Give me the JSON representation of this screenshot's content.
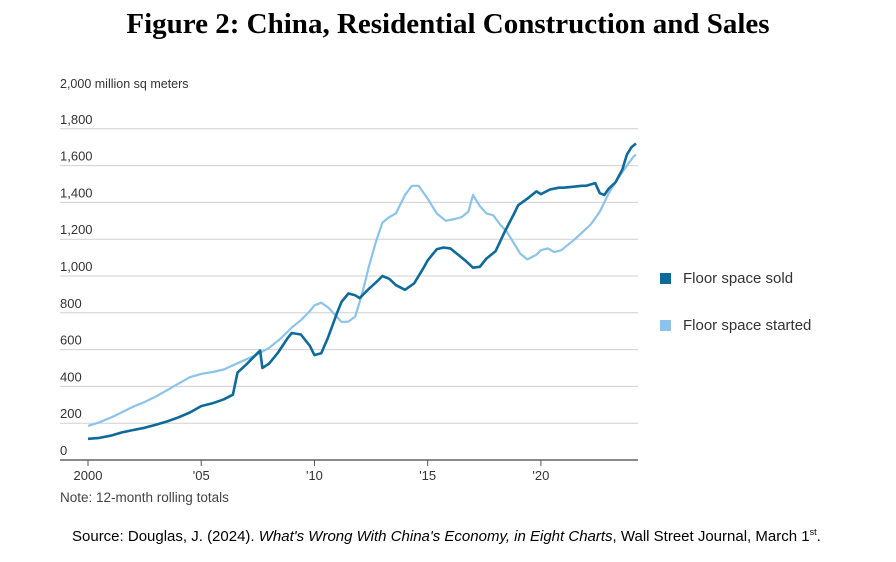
{
  "title": "Figure 2: China, Residential Construction and Sales",
  "unit_label": "2,000 million sq meters",
  "note": "Note: 12-month rolling totals",
  "source": {
    "prefix": "Source: Douglas, J. (2024). ",
    "article": "What's Wrong With China's Economy, in Eight Charts",
    "suffix": ", Wall Street Journal, March 1",
    "sup": "st",
    "end": "."
  },
  "colors": {
    "sold": "#0e6a9a",
    "started": "#8cc3e8"
  },
  "chart_data": {
    "type": "line",
    "ylim": [
      0,
      2000
    ],
    "xlim": [
      2000,
      2024.2
    ],
    "yticks": [
      {
        "value": 0,
        "label": "0"
      },
      {
        "value": 200,
        "label": "200"
      },
      {
        "value": 400,
        "label": "400"
      },
      {
        "value": 600,
        "label": "600"
      },
      {
        "value": 800,
        "label": "800"
      },
      {
        "value": 1000,
        "label": "1,000"
      },
      {
        "value": 1200,
        "label": "1,200"
      },
      {
        "value": 1400,
        "label": "1,400"
      },
      {
        "value": 1600,
        "label": "1,600"
      },
      {
        "value": 1800,
        "label": "1,800"
      }
    ],
    "xticks": [
      {
        "value": 2000,
        "label": "2000"
      },
      {
        "value": 2005,
        "label": "'05"
      },
      {
        "value": 2010,
        "label": "'10"
      },
      {
        "value": 2015,
        "label": "'15"
      },
      {
        "value": 2020,
        "label": "'20"
      }
    ],
    "grid": true,
    "legend_position": "right",
    "series": [
      {
        "name": "Floor space sold",
        "points": [
          [
            2000,
            115
          ],
          [
            2000.5,
            120
          ],
          [
            2001,
            132
          ],
          [
            2001.5,
            150
          ],
          [
            2002,
            163
          ],
          [
            2002.5,
            175
          ],
          [
            2003,
            192
          ],
          [
            2003.5,
            210
          ],
          [
            2004,
            232
          ],
          [
            2004.5,
            258
          ],
          [
            2005,
            293
          ],
          [
            2005.5,
            308
          ],
          [
            2006,
            330
          ],
          [
            2006.4,
            355
          ],
          [
            2006.6,
            475
          ],
          [
            2007,
            520
          ],
          [
            2007.4,
            570
          ],
          [
            2007.6,
            595
          ],
          [
            2007.7,
            500
          ],
          [
            2008,
            525
          ],
          [
            2008.4,
            585
          ],
          [
            2008.8,
            660
          ],
          [
            2009,
            690
          ],
          [
            2009.4,
            682
          ],
          [
            2009.8,
            620
          ],
          [
            2010,
            570
          ],
          [
            2010.3,
            580
          ],
          [
            2010.6,
            665
          ],
          [
            2011,
            800
          ],
          [
            2011.2,
            860
          ],
          [
            2011.5,
            905
          ],
          [
            2011.8,
            895
          ],
          [
            2012,
            880
          ],
          [
            2012.4,
            930
          ],
          [
            2012.8,
            975
          ],
          [
            2013,
            1000
          ],
          [
            2013.3,
            985
          ],
          [
            2013.6,
            950
          ],
          [
            2014,
            925
          ],
          [
            2014.4,
            960
          ],
          [
            2014.8,
            1040
          ],
          [
            2015,
            1085
          ],
          [
            2015.4,
            1145
          ],
          [
            2015.7,
            1155
          ],
          [
            2016,
            1150
          ],
          [
            2016.3,
            1120
          ],
          [
            2016.7,
            1080
          ],
          [
            2017,
            1045
          ],
          [
            2017.3,
            1050
          ],
          [
            2017.6,
            1095
          ],
          [
            2018,
            1135
          ],
          [
            2018.4,
            1240
          ],
          [
            2018.8,
            1335
          ],
          [
            2019,
            1385
          ],
          [
            2019.4,
            1420
          ],
          [
            2019.8,
            1460
          ],
          [
            2020,
            1445
          ],
          [
            2020.4,
            1470
          ],
          [
            2020.8,
            1480
          ],
          [
            2021,
            1480
          ],
          [
            2021.4,
            1485
          ],
          [
            2021.8,
            1490
          ],
          [
            2022,
            1490
          ],
          [
            2022.4,
            1505
          ],
          [
            2022.6,
            1450
          ],
          [
            2022.8,
            1440
          ],
          [
            2023,
            1475
          ],
          [
            2023.3,
            1510
          ],
          [
            2023.6,
            1580
          ],
          [
            2023.8,
            1660
          ],
          [
            2024,
            1700
          ],
          [
            2024.2,
            1720
          ]
        ]
      },
      {
        "name": "Floor space started",
        "points": [
          [
            2000,
            185
          ],
          [
            2000.5,
            205
          ],
          [
            2001,
            230
          ],
          [
            2001.5,
            260
          ],
          [
            2002,
            290
          ],
          [
            2002.5,
            315
          ],
          [
            2003,
            345
          ],
          [
            2003.5,
            380
          ],
          [
            2004,
            415
          ],
          [
            2004.5,
            450
          ],
          [
            2005,
            468
          ],
          [
            2005.5,
            478
          ],
          [
            2006,
            492
          ],
          [
            2006.5,
            520
          ],
          [
            2007,
            548
          ],
          [
            2007.5,
            575
          ],
          [
            2008,
            610
          ],
          [
            2008.5,
            660
          ],
          [
            2009,
            720
          ],
          [
            2009.4,
            760
          ],
          [
            2009.8,
            810
          ],
          [
            2010,
            840
          ],
          [
            2010.3,
            855
          ],
          [
            2010.6,
            830
          ],
          [
            2010.9,
            790
          ],
          [
            2011.2,
            750
          ],
          [
            2011.5,
            752
          ],
          [
            2011.8,
            780
          ],
          [
            2012,
            860
          ],
          [
            2012.2,
            950
          ],
          [
            2012.4,
            1050
          ],
          [
            2012.7,
            1180
          ],
          [
            2013,
            1290
          ],
          [
            2013.3,
            1320
          ],
          [
            2013.6,
            1340
          ],
          [
            2014,
            1440
          ],
          [
            2014.3,
            1490
          ],
          [
            2014.6,
            1490
          ],
          [
            2015,
            1420
          ],
          [
            2015.4,
            1340
          ],
          [
            2015.8,
            1300
          ],
          [
            2016.2,
            1310
          ],
          [
            2016.5,
            1320
          ],
          [
            2016.8,
            1350
          ],
          [
            2017,
            1440
          ],
          [
            2017.3,
            1380
          ],
          [
            2017.6,
            1340
          ],
          [
            2017.9,
            1330
          ],
          [
            2018.2,
            1280
          ],
          [
            2018.5,
            1240
          ],
          [
            2018.8,
            1180
          ],
          [
            2019.1,
            1120
          ],
          [
            2019.4,
            1090
          ],
          [
            2019.8,
            1115
          ],
          [
            2020,
            1140
          ],
          [
            2020.3,
            1150
          ],
          [
            2020.6,
            1130
          ],
          [
            2020.9,
            1140
          ],
          [
            2021.2,
            1170
          ],
          [
            2021.5,
            1200
          ],
          [
            2021.8,
            1235
          ],
          [
            2022.2,
            1280
          ],
          [
            2022.6,
            1350
          ],
          [
            2023,
            1450
          ],
          [
            2023.4,
            1530
          ],
          [
            2023.8,
            1600
          ],
          [
            2024.1,
            1650
          ],
          [
            2024.2,
            1660
          ]
        ]
      }
    ]
  }
}
